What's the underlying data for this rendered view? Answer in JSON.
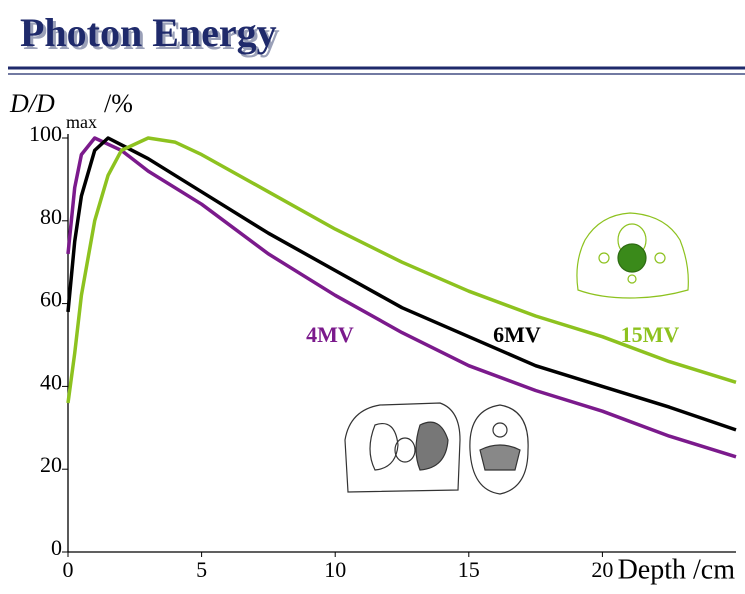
{
  "header": {
    "title": "Photon Energy"
  },
  "chart_data": {
    "type": "line",
    "ylabel": "D/D",
    "ylabel_sub": "max",
    "ylabel_suffix": "/%",
    "xlabel": "Depth /cm",
    "xlim": [
      0,
      25
    ],
    "ylim": [
      0,
      100
    ],
    "xticks": [
      0,
      5,
      10,
      15,
      20
    ],
    "yticks": [
      0,
      20,
      40,
      60,
      80,
      100
    ],
    "grid": false,
    "series": [
      {
        "name": "4MV",
        "color": "#7b1a8c",
        "x": [
          0,
          0.25,
          0.5,
          1,
          2,
          3,
          5,
          7.5,
          10,
          12.5,
          15,
          17.5,
          20,
          22.5,
          25
        ],
        "values": [
          72,
          88,
          96,
          100,
          97,
          92,
          84,
          72,
          62,
          53,
          45,
          39,
          34,
          28,
          23
        ]
      },
      {
        "name": "6MV",
        "color": "#000000",
        "x": [
          0,
          0.25,
          0.5,
          1,
          1.5,
          3,
          5,
          7.5,
          10,
          12.5,
          15,
          17.5,
          20,
          22.5,
          25
        ],
        "values": [
          58,
          75,
          86,
          97,
          100,
          95,
          87,
          77,
          68,
          59,
          52,
          45,
          40,
          35,
          29.5
        ]
      },
      {
        "name": "15MV",
        "color": "#8dc21f",
        "x": [
          0,
          0.25,
          0.5,
          1,
          1.5,
          2,
          3,
          4,
          5,
          7.5,
          10,
          12.5,
          15,
          17.5,
          20,
          22.5,
          25
        ],
        "values": [
          36,
          48,
          62,
          80,
          91,
          97,
          100,
          99,
          96,
          87,
          78,
          70,
          63,
          57,
          52,
          46,
          41
        ]
      }
    ]
  }
}
